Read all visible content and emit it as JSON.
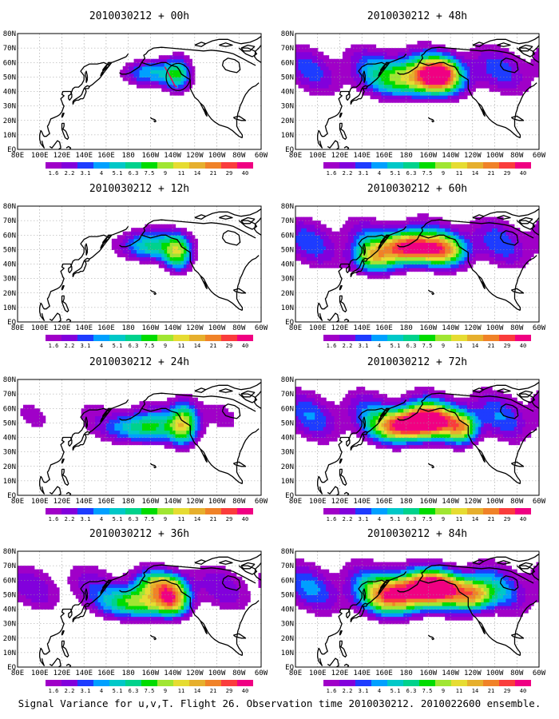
{
  "figure": {
    "caption": "Signal Variance for u,v,T. Flight 26. Observation time 2010030212. 2010022600 ensemble."
  },
  "panels": [
    {
      "title": "2010030212 + 00h",
      "lead_hours": 0,
      "features": [
        {
          "lon": -160,
          "lat": 53,
          "sx": 24,
          "sy": 9,
          "amp": 0.8
        },
        {
          "lon": -135,
          "lat": 52,
          "sx": 12,
          "sy": 12,
          "amp": 0.9
        }
      ],
      "cover": 0.0,
      "ring": true
    },
    {
      "title": "2010030212 + 12h",
      "lead_hours": 12,
      "features": [
        {
          "lon": -160,
          "lat": 53,
          "sx": 26,
          "sy": 10,
          "amp": 0.9
        },
        {
          "lon": -135,
          "lat": 48,
          "sx": 12,
          "sy": 12,
          "amp": 1.2
        }
      ],
      "cover": 0.15,
      "ring": false
    },
    {
      "title": "2010030212 + 24h",
      "lead_hours": 24,
      "features": [
        {
          "lon": -165,
          "lat": 47,
          "sx": 32,
          "sy": 10,
          "amp": 1.0
        },
        {
          "lon": -130,
          "lat": 50,
          "sx": 12,
          "sy": 14,
          "amp": 1.3
        }
      ],
      "cover": 0.35,
      "ring": false
    },
    {
      "title": "2010030212 + 36h",
      "lead_hours": 36,
      "features": [
        {
          "lon": -170,
          "lat": 45,
          "sx": 30,
          "sy": 10,
          "amp": 1.3
        },
        {
          "lon": -140,
          "lat": 47,
          "sx": 14,
          "sy": 10,
          "amp": 1.4
        },
        {
          "lon": -150,
          "lat": 58,
          "sx": 20,
          "sy": 8,
          "amp": 1.1
        }
      ],
      "cover": 0.65,
      "ring": false
    },
    {
      "title": "2010030212 + 48h",
      "lead_hours": 48,
      "features": [
        {
          "lon": -170,
          "lat": 50,
          "sx": 34,
          "sy": 12,
          "amp": 1.5
        },
        {
          "lon": -150,
          "lat": 52,
          "sx": 16,
          "sy": 10,
          "amp": 1.6
        }
      ],
      "cover": 0.8,
      "ring": false
    },
    {
      "title": "2010030212 + 60h",
      "lead_hours": 60,
      "features": [
        {
          "lon": 180,
          "lat": 52,
          "sx": 20,
          "sy": 10,
          "amp": 2.0
        },
        {
          "lon": -150,
          "lat": 50,
          "sx": 22,
          "sy": 10,
          "amp": 1.6
        },
        {
          "lon": 150,
          "lat": 45,
          "sx": 18,
          "sy": 10,
          "amp": 1.2
        }
      ],
      "cover": 0.85,
      "ring": false
    },
    {
      "title": "2010030212 + 72h",
      "lead_hours": 72,
      "features": [
        {
          "lon": -160,
          "lat": 52,
          "sx": 22,
          "sy": 10,
          "amp": 2.2
        },
        {
          "lon": 175,
          "lat": 48,
          "sx": 24,
          "sy": 10,
          "amp": 1.8
        },
        {
          "lon": -130,
          "lat": 47,
          "sx": 14,
          "sy": 10,
          "amp": 1.4
        }
      ],
      "cover": 0.9,
      "ring": false
    },
    {
      "title": "2010030212 + 84h",
      "lead_hours": 84,
      "features": [
        {
          "lon": -155,
          "lat": 55,
          "sx": 24,
          "sy": 10,
          "amp": 2.4
        },
        {
          "lon": 170,
          "lat": 50,
          "sx": 26,
          "sy": 12,
          "amp": 1.9
        },
        {
          "lon": -120,
          "lat": 50,
          "sx": 18,
          "sy": 10,
          "amp": 1.6
        }
      ],
      "cover": 0.95,
      "ring": false
    }
  ],
  "map": {
    "lon_labels": [
      "80E",
      "100E",
      "120E",
      "140E",
      "160E",
      "180",
      "160W",
      "140W",
      "120W",
      "100W",
      "80W",
      "60W"
    ],
    "lat_labels": [
      "EQ",
      "10N",
      "20N",
      "30N",
      "40N",
      "50N",
      "60N",
      "70N",
      "80N"
    ],
    "lon_range_deg_east": [
      80,
      300
    ],
    "lat_range": [
      0,
      80
    ],
    "grid": true
  },
  "colorbar": {
    "labels": [
      "1.6",
      "2.2",
      "3.1",
      "4",
      "5.1",
      "6.3",
      "7.5",
      "9",
      "11",
      "14",
      "21",
      "29",
      "40"
    ],
    "colors": [
      "#a000c8",
      "#8200dc",
      "#1e3cff",
      "#00a0ff",
      "#00c8c8",
      "#00d28c",
      "#00dc00",
      "#a0e632",
      "#e6dc32",
      "#e6af2d",
      "#f08228",
      "#fa3c3c",
      "#f00082"
    ]
  },
  "colors": {
    "background": "#ffffff",
    "coast": "#000000",
    "grid": "#999999",
    "frame": "#000000",
    "track": "#e8005a"
  }
}
